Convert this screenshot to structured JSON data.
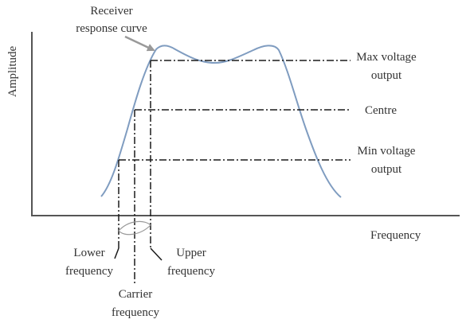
{
  "diagram": {
    "axis_y_label": "Amplitude",
    "axis_x_label": "Frequency",
    "curve_label": [
      "Receiver",
      "response curve"
    ],
    "max_label": [
      "Max voltage",
      "output"
    ],
    "centre_label": "Centre",
    "min_label": [
      "Min voltage",
      "output"
    ],
    "lower_label": [
      "Lower",
      "frequency"
    ],
    "carrier_label": [
      "Carrier",
      "frequency"
    ],
    "upper_label": [
      "Upper",
      "frequency"
    ]
  },
  "colors": {
    "curve": "#7f9cc0",
    "axis": "#555555",
    "guides": "#1a1a1a",
    "text": "#333333",
    "pointer_arrow": "#999999"
  }
}
